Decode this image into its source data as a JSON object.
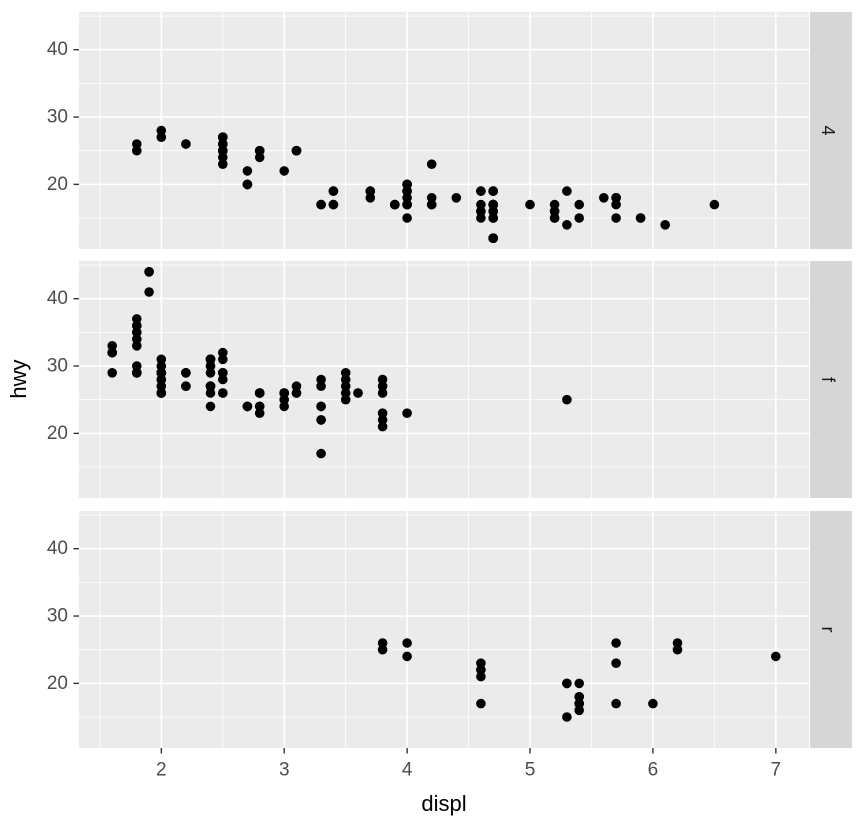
{
  "style": {
    "background": "#FFFFFF",
    "panel_bg": "#EBEBEB",
    "grid_major": "#FFFFFF",
    "grid_minor": "#FFFFFF",
    "strip_bg": "#D6D6D6",
    "strip_text": "#1A1A1A",
    "point": "#000000",
    "axis_text": "#4D4D4D",
    "axis_title": "#000000",
    "tick_mark": "#333333"
  },
  "chart_data": {
    "type": "scatter",
    "title": "",
    "xlabel": "displ",
    "ylabel": "hwy",
    "facet_variable_values": [
      "4",
      "f",
      "r"
    ],
    "facet_strip_side": "right",
    "legend": "none",
    "grid": "on",
    "x_ticks": [
      2,
      3,
      4,
      5,
      6,
      7
    ],
    "y_ticks": [
      20,
      30,
      40
    ],
    "x_minor": [
      1.5,
      2.5,
      3.5,
      4.5,
      5.5,
      6.5
    ],
    "y_minor": [
      15,
      25,
      35,
      45
    ],
    "xlim": [
      1.33,
      7.27
    ],
    "ylim": [
      10.4,
      45.6
    ],
    "facets": [
      {
        "label": "4",
        "points": [
          [
            1.8,
            26
          ],
          [
            1.8,
            25
          ],
          [
            2.0,
            28
          ],
          [
            2.0,
            27
          ],
          [
            2.8,
            25
          ],
          [
            2.8,
            25
          ],
          [
            3.1,
            25
          ],
          [
            3.1,
            25
          ],
          [
            2.8,
            24
          ],
          [
            3.1,
            25
          ],
          [
            4.2,
            23
          ],
          [
            5.3,
            14
          ],
          [
            5.3,
            19
          ],
          [
            5.7,
            15
          ],
          [
            6.5,
            17
          ],
          [
            3.7,
            19
          ],
          [
            3.7,
            18
          ],
          [
            3.9,
            17
          ],
          [
            3.9,
            17
          ],
          [
            4.7,
            19
          ],
          [
            4.7,
            19
          ],
          [
            4.7,
            12
          ],
          [
            5.2,
            17
          ],
          [
            5.2,
            15
          ],
          [
            3.9,
            17
          ],
          [
            4.7,
            17
          ],
          [
            4.7,
            12
          ],
          [
            4.7,
            17
          ],
          [
            5.2,
            16
          ],
          [
            5.7,
            18
          ],
          [
            5.9,
            15
          ],
          [
            4.7,
            16
          ],
          [
            4.7,
            12
          ],
          [
            4.7,
            17
          ],
          [
            4.7,
            17
          ],
          [
            4.7,
            16
          ],
          [
            4.7,
            12
          ],
          [
            5.2,
            15
          ],
          [
            5.2,
            16
          ],
          [
            5.7,
            17
          ],
          [
            5.9,
            15
          ],
          [
            4.0,
            17
          ],
          [
            4.0,
            19
          ],
          [
            4.0,
            17
          ],
          [
            4.0,
            19
          ],
          [
            4.6,
            19
          ],
          [
            4.2,
            17
          ],
          [
            4.2,
            17
          ],
          [
            4.6,
            16
          ],
          [
            4.6,
            16
          ],
          [
            4.6,
            17
          ],
          [
            5.4,
            15
          ],
          [
            5.4,
            17
          ],
          [
            3.0,
            22
          ],
          [
            3.7,
            19
          ],
          [
            4.0,
            20
          ],
          [
            4.7,
            17
          ],
          [
            4.7,
            12
          ],
          [
            4.7,
            19
          ],
          [
            5.7,
            18
          ],
          [
            6.1,
            14
          ],
          [
            4.0,
            15
          ],
          [
            4.2,
            18
          ],
          [
            4.4,
            18
          ],
          [
            4.6,
            15
          ],
          [
            4.0,
            17
          ],
          [
            4.0,
            19
          ],
          [
            4.6,
            19
          ],
          [
            5.0,
            17
          ],
          [
            3.3,
            17
          ],
          [
            3.3,
            17
          ],
          [
            4.0,
            20
          ],
          [
            5.6,
            18
          ],
          [
            2.5,
            25
          ],
          [
            2.5,
            24
          ],
          [
            2.5,
            27
          ],
          [
            2.5,
            25
          ],
          [
            2.5,
            26
          ],
          [
            2.5,
            23
          ],
          [
            2.2,
            26
          ],
          [
            2.2,
            26
          ],
          [
            2.5,
            26
          ],
          [
            2.5,
            26
          ],
          [
            2.5,
            25
          ],
          [
            2.5,
            27
          ],
          [
            2.5,
            25
          ],
          [
            2.5,
            27
          ],
          [
            2.7,
            20
          ],
          [
            2.7,
            20
          ],
          [
            3.4,
            19
          ],
          [
            3.4,
            17
          ],
          [
            4.0,
            20
          ],
          [
            4.7,
            17
          ],
          [
            4.7,
            15
          ],
          [
            5.7,
            18
          ],
          [
            4.7,
            15
          ],
          [
            2.7,
            20
          ],
          [
            2.7,
            20
          ],
          [
            2.7,
            22
          ],
          [
            3.4,
            17
          ],
          [
            3.4,
            19
          ],
          [
            4.0,
            18
          ],
          [
            4.0,
            20
          ]
        ]
      },
      {
        "label": "f",
        "points": [
          [
            1.8,
            29
          ],
          [
            1.8,
            29
          ],
          [
            2.0,
            31
          ],
          [
            2.0,
            30
          ],
          [
            2.8,
            26
          ],
          [
            2.8,
            26
          ],
          [
            3.1,
            27
          ],
          [
            2.4,
            27
          ],
          [
            2.4,
            30
          ],
          [
            3.1,
            26
          ],
          [
            3.5,
            29
          ],
          [
            3.6,
            26
          ],
          [
            2.4,
            24
          ],
          [
            3.0,
            24
          ],
          [
            3.3,
            22
          ],
          [
            3.3,
            22
          ],
          [
            3.3,
            24
          ],
          [
            3.3,
            24
          ],
          [
            3.3,
            17
          ],
          [
            3.8,
            22
          ],
          [
            3.8,
            21
          ],
          [
            3.8,
            23
          ],
          [
            4.0,
            23
          ],
          [
            1.6,
            33
          ],
          [
            1.6,
            32
          ],
          [
            1.6,
            32
          ],
          [
            1.6,
            29
          ],
          [
            1.6,
            32
          ],
          [
            1.8,
            34
          ],
          [
            1.8,
            36
          ],
          [
            1.8,
            36
          ],
          [
            2.0,
            29
          ],
          [
            2.4,
            26
          ],
          [
            2.4,
            27
          ],
          [
            2.4,
            30
          ],
          [
            2.4,
            31
          ],
          [
            2.5,
            26
          ],
          [
            2.5,
            26
          ],
          [
            3.3,
            28
          ],
          [
            2.0,
            26
          ],
          [
            2.0,
            29
          ],
          [
            2.0,
            28
          ],
          [
            2.0,
            27
          ],
          [
            2.7,
            24
          ],
          [
            2.7,
            24
          ],
          [
            2.7,
            24
          ],
          [
            2.4,
            29
          ],
          [
            2.4,
            27
          ],
          [
            2.5,
            31
          ],
          [
            2.5,
            32
          ],
          [
            3.5,
            27
          ],
          [
            3.5,
            26
          ],
          [
            3.0,
            26
          ],
          [
            3.0,
            25
          ],
          [
            3.5,
            25
          ],
          [
            3.1,
            26
          ],
          [
            3.8,
            26
          ],
          [
            3.8,
            27
          ],
          [
            3.8,
            28
          ],
          [
            5.3,
            25
          ],
          [
            2.2,
            29
          ],
          [
            2.2,
            27
          ],
          [
            2.4,
            31
          ],
          [
            2.4,
            31
          ],
          [
            3.0,
            26
          ],
          [
            3.0,
            26
          ],
          [
            3.5,
            28
          ],
          [
            2.2,
            27
          ],
          [
            2.2,
            29
          ],
          [
            2.4,
            31
          ],
          [
            2.4,
            31
          ],
          [
            3.0,
            26
          ],
          [
            3.3,
            27
          ],
          [
            1.8,
            30
          ],
          [
            1.8,
            33
          ],
          [
            1.8,
            35
          ],
          [
            1.8,
            37
          ],
          [
            1.8,
            35
          ],
          [
            2.0,
            29
          ],
          [
            2.0,
            26
          ],
          [
            2.0,
            29
          ],
          [
            2.0,
            29
          ],
          [
            2.8,
            24
          ],
          [
            1.9,
            44
          ],
          [
            2.0,
            29
          ],
          [
            2.0,
            26
          ],
          [
            2.0,
            29
          ],
          [
            2.0,
            29
          ],
          [
            2.5,
            29
          ],
          [
            2.5,
            29
          ],
          [
            2.8,
            23
          ],
          [
            2.8,
            24
          ],
          [
            1.9,
            44
          ],
          [
            1.9,
            41
          ],
          [
            2.0,
            29
          ],
          [
            2.0,
            26
          ],
          [
            2.5,
            28
          ],
          [
            2.5,
            29
          ],
          [
            1.8,
            29
          ],
          [
            1.8,
            29
          ],
          [
            2.0,
            28
          ],
          [
            2.0,
            29
          ],
          [
            2.8,
            26
          ],
          [
            2.8,
            26
          ],
          [
            3.6,
            26
          ]
        ]
      },
      {
        "label": "r",
        "points": [
          [
            5.3,
            20
          ],
          [
            5.3,
            15
          ],
          [
            5.3,
            20
          ],
          [
            5.7,
            17
          ],
          [
            6.0,
            17
          ],
          [
            5.7,
            26
          ],
          [
            5.7,
            23
          ],
          [
            6.2,
            26
          ],
          [
            6.2,
            25
          ],
          [
            7.0,
            24
          ],
          [
            4.6,
            17
          ],
          [
            5.4,
            17
          ],
          [
            5.4,
            18
          ],
          [
            3.8,
            26
          ],
          [
            3.8,
            25
          ],
          [
            4.0,
            26
          ],
          [
            4.0,
            24
          ],
          [
            4.6,
            21
          ],
          [
            4.6,
            22
          ],
          [
            4.6,
            23
          ],
          [
            4.6,
            22
          ],
          [
            5.4,
            20
          ],
          [
            5.4,
            17
          ],
          [
            5.4,
            16
          ],
          [
            5.4,
            18
          ]
        ]
      }
    ]
  }
}
